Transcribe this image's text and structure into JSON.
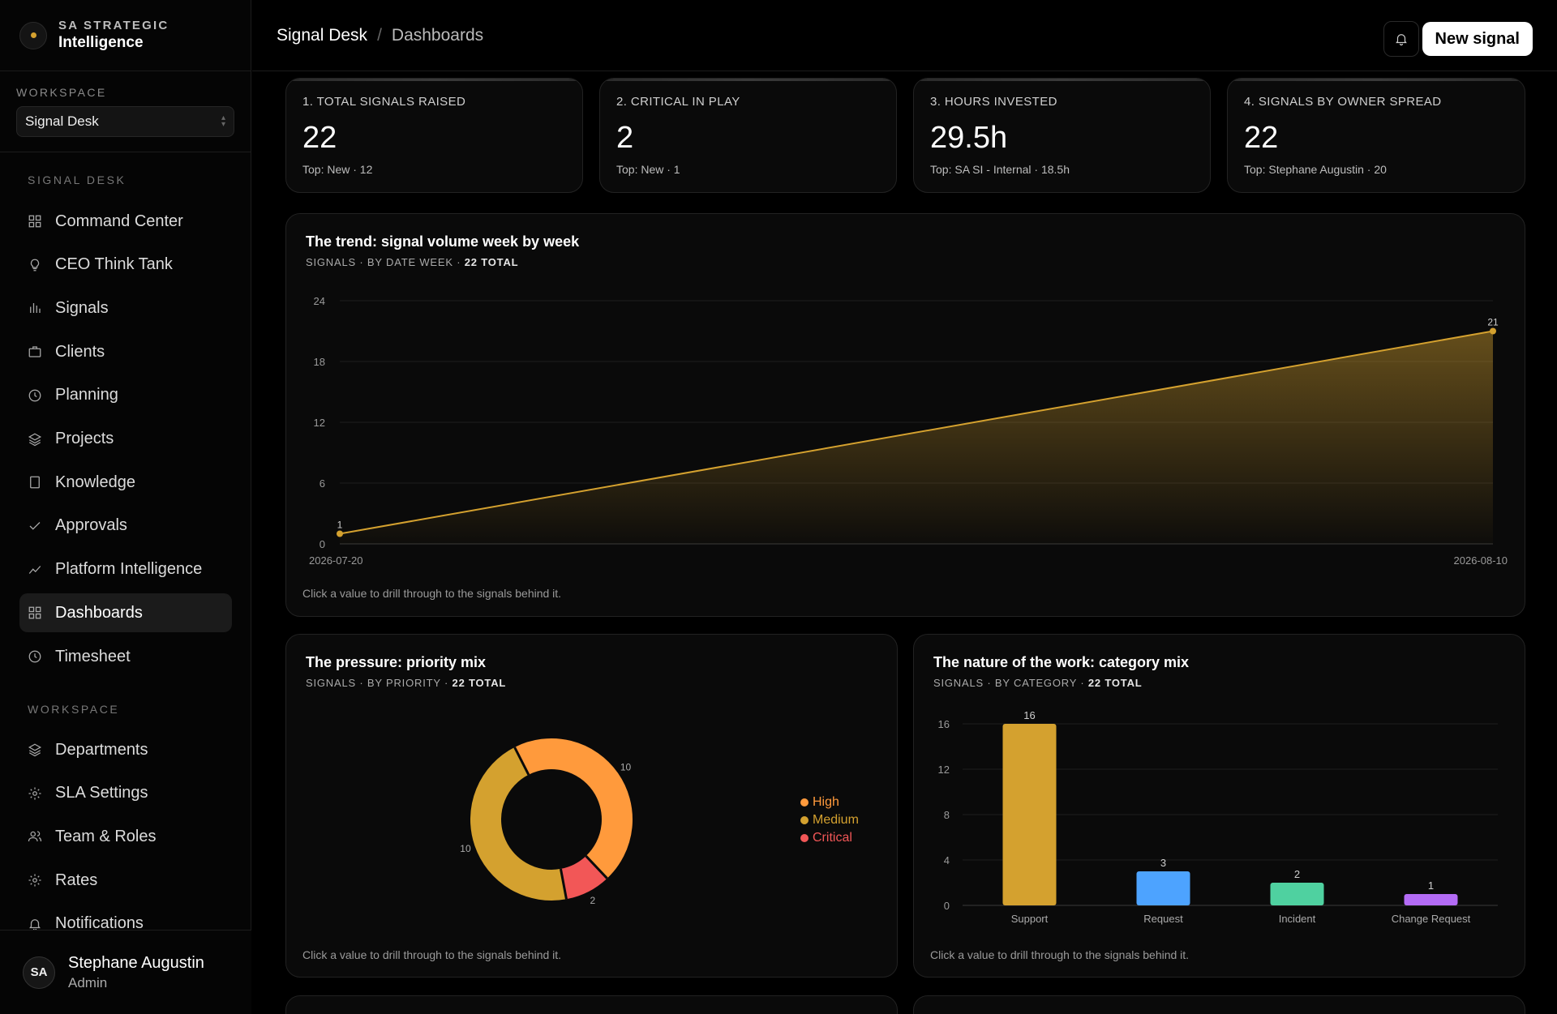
{
  "brand": {
    "line1": "SA STRATEGIC",
    "line2": "Intelligence"
  },
  "workspace": {
    "label": "WORKSPACE",
    "selected": "Signal Desk"
  },
  "nav": {
    "section1": "SIGNAL DESK",
    "items1": [
      {
        "label": "Command Center",
        "icon": "grid-icon"
      },
      {
        "label": "CEO Think Tank",
        "icon": "lightbulb-icon"
      },
      {
        "label": "Signals",
        "icon": "bar-chart-icon"
      },
      {
        "label": "Clients",
        "icon": "briefcase-icon"
      },
      {
        "label": "Planning",
        "icon": "clock-icon"
      },
      {
        "label": "Projects",
        "icon": "layers-icon"
      },
      {
        "label": "Knowledge",
        "icon": "book-icon"
      },
      {
        "label": "Approvals",
        "icon": "check-icon"
      },
      {
        "label": "Platform Intelligence",
        "icon": "trend-icon"
      },
      {
        "label": "Dashboards",
        "icon": "grid-icon",
        "active": true
      },
      {
        "label": "Timesheet",
        "icon": "clock-icon"
      }
    ],
    "section2": "WORKSPACE",
    "items2": [
      {
        "label": "Departments",
        "icon": "layers-icon"
      },
      {
        "label": "SLA Settings",
        "icon": "gear-icon"
      },
      {
        "label": "Team & Roles",
        "icon": "users-icon"
      },
      {
        "label": "Rates",
        "icon": "gear-icon"
      },
      {
        "label": "Notifications",
        "icon": "bell-icon"
      }
    ]
  },
  "user": {
    "initials": "SA",
    "name": "Stephane Augustin",
    "role": "Admin"
  },
  "topbar": {
    "crumb1": "Signal Desk",
    "sep": "/",
    "crumb2": "Dashboards",
    "new_button": "New signal"
  },
  "kpis": [
    {
      "title": "1. TOTAL SIGNALS RAISED",
      "value": "22",
      "sub": "Top: New · 12"
    },
    {
      "title": "2. CRITICAL IN PLAY",
      "value": "2",
      "sub": "Top: New · 1"
    },
    {
      "title": "3. HOURS INVESTED",
      "value": "29.5h",
      "sub": "Top: SA SI - Internal · 18.5h"
    },
    {
      "title": "4. SIGNALS BY OWNER SPREAD",
      "value": "22",
      "sub": "Top: Stephane Augustin · 20"
    }
  ],
  "trend": {
    "title": "The trend: signal volume week by week",
    "subtitle_prefix": "SIGNALS · BY DATE WEEK · ",
    "subtitle_total": "22 TOTAL",
    "footer": "Click a value to drill through to the signals behind it."
  },
  "priority": {
    "title": "The pressure: priority mix",
    "subtitle_prefix": "SIGNALS · BY PRIORITY · ",
    "subtitle_total": "22 TOTAL",
    "footer": "Click a value to drill through to the signals behind it."
  },
  "category": {
    "title": "The nature of the work: category mix",
    "subtitle_prefix": "SIGNALS · BY CATEGORY · ",
    "subtitle_total": "22 TOTAL",
    "footer": "Click a value to drill through to the signals behind it."
  },
  "chart_data": [
    {
      "type": "area",
      "x": [
        "2026-07-20",
        "2026-08-10"
      ],
      "y": [
        1,
        21
      ],
      "ylim": [
        0,
        24
      ],
      "yticks": [
        0,
        6,
        12,
        18,
        24
      ],
      "color": "#d4a12f"
    },
    {
      "type": "pie",
      "donut": true,
      "labels": [
        "High",
        "Medium",
        "Critical"
      ],
      "values": [
        10,
        10,
        2
      ],
      "colors": [
        "#ff9a3c",
        "#d4a12f",
        "#f25757"
      ]
    },
    {
      "type": "bar",
      "categories": [
        "Support",
        "Request",
        "Incident",
        "Change Request"
      ],
      "values": [
        16,
        3,
        2,
        1
      ],
      "colors": [
        "#d4a12f",
        "#4da3ff",
        "#4fd1a0",
        "#b36bf5"
      ],
      "ylim": [
        0,
        16
      ],
      "yticks": [
        0,
        4,
        8,
        12,
        16
      ]
    }
  ]
}
